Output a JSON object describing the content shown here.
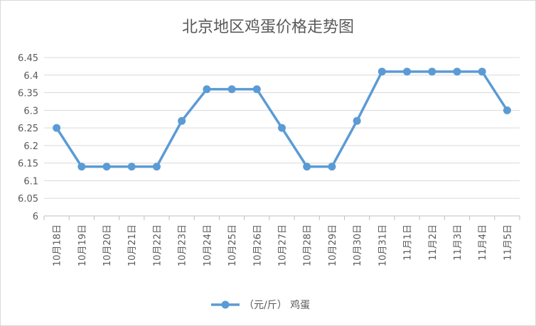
{
  "chart_data": {
    "type": "line",
    "title": "北京地区鸡蛋价格走势图",
    "categories": [
      "10月18日",
      "10月19日",
      "10月20日",
      "10月21日",
      "10月22日",
      "10月23日",
      "10月24日",
      "10月25日",
      "10月26日",
      "10月27日",
      "10月28日",
      "10月29日",
      "10月30日",
      "10月31日",
      "11月1日",
      "11月2日",
      "11月3日",
      "11月4日",
      "11月5日"
    ],
    "series": [
      {
        "name": "（元/斤） 鸡蛋",
        "color": "#5b9bd5",
        "values": [
          6.25,
          6.14,
          6.14,
          6.14,
          6.14,
          6.27,
          6.36,
          6.36,
          6.36,
          6.25,
          6.14,
          6.14,
          6.27,
          6.41,
          6.41,
          6.41,
          6.41,
          6.41,
          6.3
        ]
      }
    ],
    "yticks": [
      "6",
      "6.05",
      "6.1",
      "6.15",
      "6.2",
      "6.25",
      "6.3",
      "6.35",
      "6.4",
      "6.45"
    ],
    "ylim": [
      6,
      6.45
    ],
    "grid": true,
    "legend_position": "bottom"
  }
}
